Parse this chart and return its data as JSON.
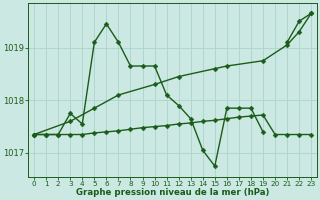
{
  "xlabel": "Graphe pression niveau de la mer (hPa)",
  "bg_color": "#cce8e2",
  "line_color": "#1a5c1a",
  "grid_color": "#aad4cc",
  "ylim": [
    1016.55,
    1019.85
  ],
  "yticks": [
    1017,
    1018,
    1019
  ],
  "x_hours": [
    0,
    1,
    2,
    3,
    4,
    5,
    6,
    7,
    8,
    9,
    10,
    11,
    12,
    13,
    14,
    15,
    16,
    17,
    18,
    19,
    20,
    21,
    22,
    23
  ],
  "series": [
    {
      "segments": [
        {
          "x": [
            0,
            1,
            2,
            3,
            4,
            5,
            6,
            7,
            8,
            9,
            10,
            11,
            12,
            13,
            14,
            15,
            16,
            17,
            18,
            19
          ],
          "y": [
            1017.35,
            1017.35,
            1017.35,
            1017.75,
            1017.55,
            1019.1,
            1019.45,
            1019.1,
            1018.65,
            1018.65,
            1018.65,
            1018.1,
            1017.9,
            1017.65,
            1017.05,
            1016.75,
            1017.85,
            1017.85,
            1017.85,
            1017.4
          ]
        },
        {
          "x": [
            21,
            22,
            23
          ],
          "y": [
            1019.1,
            1019.5,
            1019.65
          ]
        }
      ]
    },
    {
      "segments": [
        {
          "x": [
            0,
            3,
            5,
            7,
            10,
            12,
            15,
            16,
            19,
            21,
            22,
            23
          ],
          "y": [
            1017.35,
            1017.6,
            1017.85,
            1018.1,
            1018.3,
            1018.45,
            1018.6,
            1018.65,
            1018.75,
            1019.05,
            1019.3,
            1019.65
          ]
        }
      ]
    },
    {
      "segments": [
        {
          "x": [
            0,
            1,
            2,
            3,
            4,
            5,
            6,
            7,
            8,
            9,
            10,
            11,
            12,
            13,
            14,
            15,
            16,
            17,
            18,
            19,
            20,
            21,
            22,
            23
          ],
          "y": [
            1017.35,
            1017.35,
            1017.35,
            1017.35,
            1017.35,
            1017.38,
            1017.4,
            1017.42,
            1017.45,
            1017.48,
            1017.5,
            1017.52,
            1017.55,
            1017.57,
            1017.6,
            1017.62,
            1017.65,
            1017.68,
            1017.7,
            1017.72,
            1017.35,
            1017.35,
            1017.35,
            1017.35
          ]
        }
      ]
    }
  ],
  "markersize": 2.5,
  "linewidth": 1.0,
  "tick_fontsize": 5.2,
  "ytick_fontsize": 6.0,
  "xlabel_fontsize": 6.2
}
